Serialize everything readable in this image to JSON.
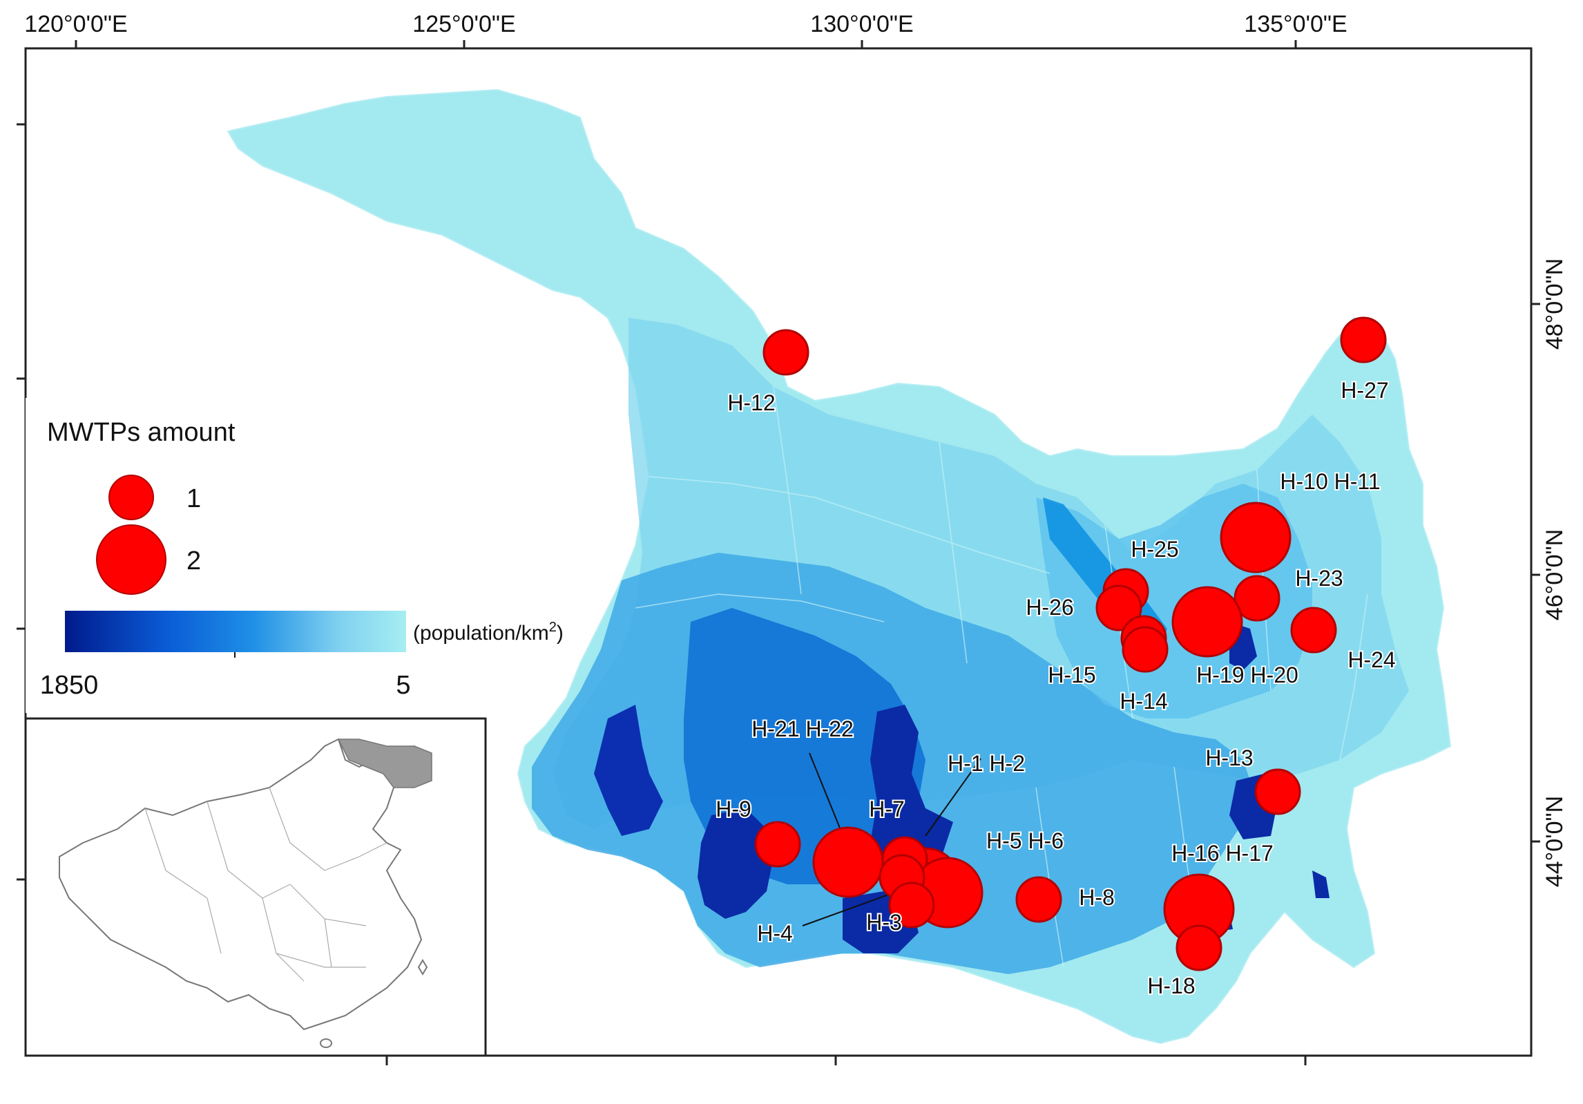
{
  "axes": {
    "top_ticks": [
      "120°0'0\"E",
      "125°0'0\"E",
      "130°0'0\"E",
      "135°0'0\"E"
    ],
    "right_ticks": [
      "48°0'0\"N",
      "46°0'0\"N",
      "44°0'0\"N"
    ]
  },
  "legend": {
    "title": "MWTPs amount",
    "size_items": [
      {
        "value": 1,
        "label": "1"
      },
      {
        "value": 2,
        "label": "2"
      }
    ],
    "colorbar_unit": "(population/km",
    "colorbar_unit_sup": "2",
    "colorbar_unit_close": ")",
    "colorbar_max": "1850",
    "colorbar_min": "5",
    "colorbar_colors": [
      "#001a8c",
      "#0a5cd6",
      "#1f8fe6",
      "#7fd0f0",
      "#a6eef2"
    ]
  },
  "colors": {
    "marker": "#ff0000",
    "marker_stroke": "#b30000",
    "high_density": "#0a2aa6",
    "mid_density": "#2e9be6",
    "low_density": "#a3e9f0",
    "inset_highlight": "#999999"
  },
  "sites": [
    {
      "label": "H-12",
      "count": 1
    },
    {
      "label": "H-27",
      "count": 1
    },
    {
      "label": "H-10 H-11",
      "count": 2
    },
    {
      "label": "H-25",
      "count": 1
    },
    {
      "label": "H-23",
      "count": 1
    },
    {
      "label": "H-26",
      "count": 1
    },
    {
      "label": "H-24",
      "count": 1
    },
    {
      "label": "H-15",
      "count": 1
    },
    {
      "label": "H-19 H-20",
      "count": 2
    },
    {
      "label": "H-14",
      "count": 1
    },
    {
      "label": "H-21 H-22",
      "count": 2
    },
    {
      "label": "H-1 H-2",
      "count": 2
    },
    {
      "label": "H-13",
      "count": 1
    },
    {
      "label": "H-9",
      "count": 1
    },
    {
      "label": "H-7",
      "count": 1
    },
    {
      "label": "H-5 H-6",
      "count": 2
    },
    {
      "label": "H-16 H-17",
      "count": 2
    },
    {
      "label": "H-8",
      "count": 1
    },
    {
      "label": "H-4",
      "count": 1
    },
    {
      "label": "H-3",
      "count": 1
    },
    {
      "label": "H-18",
      "count": 1
    }
  ]
}
